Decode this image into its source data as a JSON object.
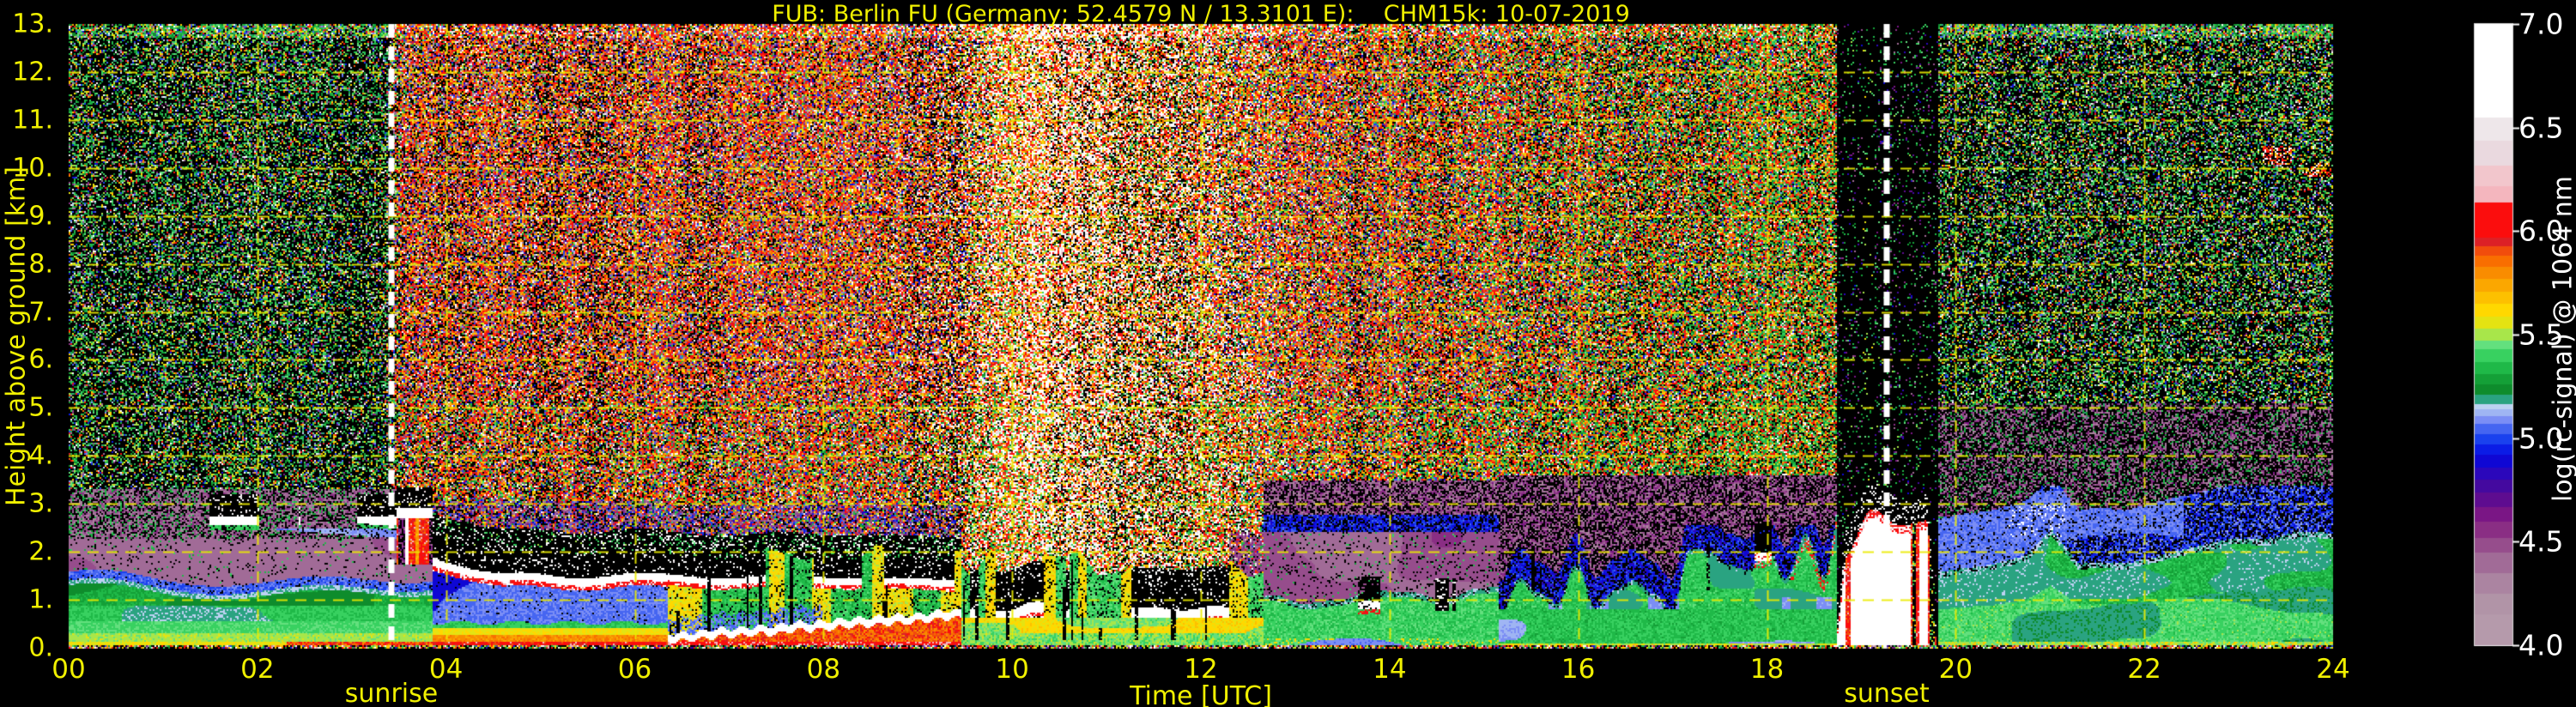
{
  "chart_data": {
    "type": "heatmap",
    "title": "FUB: Berlin FU (Germany; 52.4579 N / 13.3101 E):    CHM15k: 10-07-2019",
    "station": "Berlin FU",
    "instrument": "CHM15k",
    "date": "10-07-2019",
    "coordinates": "52.4579 N / 13.3101 E",
    "xlabel": "Time [UTC]",
    "ylabel": "Height above ground [km]",
    "x_range_hours": [
      0,
      24
    ],
    "y_range_km": [
      0,
      13
    ],
    "x_ticks": [
      "00",
      "02",
      "04",
      "06",
      "08",
      "10",
      "12",
      "14",
      "16",
      "18",
      "20",
      "22",
      "24"
    ],
    "x_tick_hours": [
      0,
      2,
      4,
      6,
      8,
      10,
      12,
      14,
      16,
      18,
      20,
      22,
      24
    ],
    "y_ticks": [
      "13.",
      "12.",
      "11.",
      "10.",
      "9.",
      "8.",
      "7.",
      "6.",
      "5.",
      "4.",
      "3.",
      "2.",
      "1.",
      "0."
    ],
    "y_tick_values": [
      13,
      12,
      11,
      10,
      9,
      8,
      7,
      6,
      5,
      4,
      3,
      2,
      1,
      0
    ],
    "grid": {
      "style": "dashed",
      "color": "#e6e600"
    },
    "annotations": [
      {
        "label": "sunrise",
        "time_utc_hours": 3.42,
        "line": "white-dashed"
      },
      {
        "label": "sunset",
        "time_utc_hours": 19.27,
        "line": "white-dashed"
      }
    ],
    "colorbar": {
      "label": "log(rc-signal) @ 1064 nm",
      "range": [
        4.0,
        7.0
      ],
      "tick_labels": [
        "7.0",
        "6.5",
        "6.0",
        "5.5",
        "5.0",
        "4.5",
        "4.0"
      ],
      "tick_values": [
        7.0,
        6.5,
        6.0,
        5.5,
        5.0,
        4.5,
        4.0
      ],
      "tick_color": "#ffffff",
      "stops": [
        [
          4.0,
          "#b59aab"
        ],
        [
          4.15,
          "#b194a7"
        ],
        [
          4.25,
          "#ab84a1"
        ],
        [
          4.35,
          "#a16b97"
        ],
        [
          4.45,
          "#964d8c"
        ],
        [
          4.52,
          "#8a2e84"
        ],
        [
          4.6,
          "#7a1685"
        ],
        [
          4.67,
          "#5e0c90"
        ],
        [
          4.74,
          "#44099f"
        ],
        [
          4.8,
          "#2b07bb"
        ],
        [
          4.86,
          "#0f07d4"
        ],
        [
          4.92,
          "#0b1ce6"
        ],
        [
          4.97,
          "#1a41ee"
        ],
        [
          5.02,
          "#4565f1"
        ],
        [
          5.07,
          "#7b8ef5"
        ],
        [
          5.11,
          "#9fb5f3"
        ],
        [
          5.14,
          "#bcd2f2"
        ],
        [
          5.165,
          "#2aa381"
        ],
        [
          5.21,
          "#0e8c2c"
        ],
        [
          5.26,
          "#14a037"
        ],
        [
          5.31,
          "#1fb948"
        ],
        [
          5.37,
          "#38d160"
        ],
        [
          5.43,
          "#63e07e"
        ],
        [
          5.475,
          "#a8e64a"
        ],
        [
          5.53,
          "#e4e312"
        ],
        [
          5.59,
          "#ffd800"
        ],
        [
          5.65,
          "#fdc000"
        ],
        [
          5.71,
          "#fba700"
        ],
        [
          5.77,
          "#f98c00"
        ],
        [
          5.83,
          "#f96e00"
        ],
        [
          5.885,
          "#f14c0c"
        ],
        [
          5.93,
          "#dc2026"
        ],
        [
          5.97,
          "#fb0d0d"
        ],
        [
          6.14,
          "#f4b6be"
        ],
        [
          6.22,
          "#f2c6cc"
        ],
        [
          6.32,
          "#ead9df"
        ],
        [
          6.44,
          "#eee7ea"
        ],
        [
          6.55,
          "#ffffff"
        ]
      ]
    },
    "colors": {
      "background": "#000000",
      "axis_text": "#f0f000",
      "title_text": "#f0f000",
      "colorbar_text": "#ffffff",
      "sun_lines": "#ffffff"
    }
  }
}
